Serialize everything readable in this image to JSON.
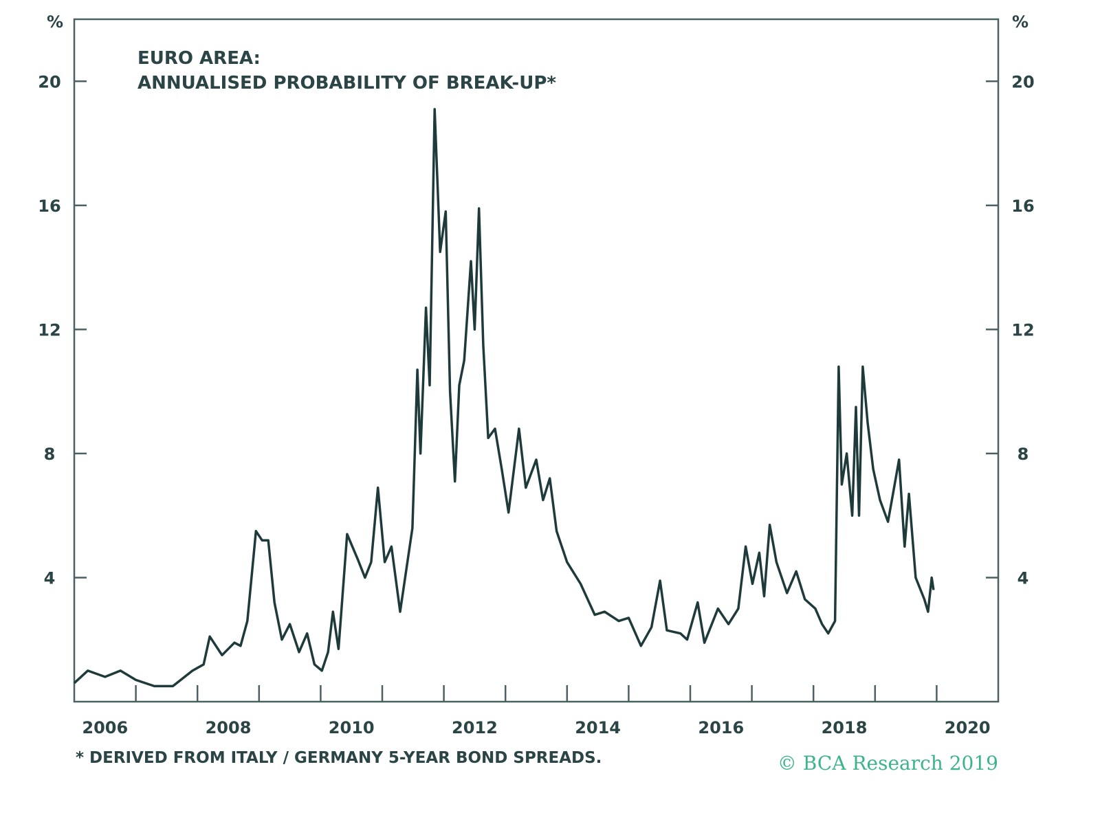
{
  "chart_data": {
    "type": "line",
    "title": "EURO AREA:",
    "subtitle": "ANNUALISED PROBABILITY OF BREAK-UP*",
    "ylabel_left": "%",
    "ylabel_right": "%",
    "ylim": [
      0,
      22
    ],
    "xlim": [
      2006,
      2021
    ],
    "yticks": [
      4,
      8,
      12,
      16,
      20
    ],
    "xtick_labels": [
      "2006",
      "2008",
      "2010",
      "2012",
      "2014",
      "2016",
      "2018",
      "2020"
    ],
    "grid": false,
    "footnote": "* DERIVED FROM ITALY / GERMANY 5-YEAR BOND SPREADS.",
    "source": "© BCA Research 2019",
    "line_color": "#1e3a3a",
    "series": [
      {
        "name": "Annualised probability of break-up",
        "x": [
          2006.0,
          2006.22,
          2006.5,
          2006.75,
          2007.0,
          2007.3,
          2007.6,
          2007.92,
          2008.1,
          2008.2,
          2008.4,
          2008.6,
          2008.7,
          2008.81,
          2008.95,
          2009.05,
          2009.15,
          2009.25,
          2009.37,
          2009.5,
          2009.65,
          2009.78,
          2009.9,
          2010.02,
          2010.12,
          2010.2,
          2010.29,
          2010.43,
          2010.6,
          2010.72,
          2010.82,
          2010.93,
          2011.04,
          2011.15,
          2011.29,
          2011.49,
          2011.57,
          2011.62,
          2011.71,
          2011.77,
          2011.85,
          2011.94,
          2012.03,
          2012.1,
          2012.18,
          2012.25,
          2012.33,
          2012.44,
          2012.5,
          2012.57,
          2012.64,
          2012.72,
          2012.83,
          2012.94,
          2013.05,
          2013.22,
          2013.33,
          2013.5,
          2013.61,
          2013.72,
          2013.83,
          2014.0,
          2014.22,
          2014.45,
          2014.61,
          2014.84,
          2015.0,
          2015.2,
          2015.37,
          2015.51,
          2015.62,
          2015.84,
          2015.95,
          2016.12,
          2016.23,
          2016.45,
          2016.62,
          2016.78,
          2016.9,
          2017.01,
          2017.12,
          2017.2,
          2017.29,
          2017.4,
          2017.57,
          2017.72,
          2017.86,
          2018.03,
          2018.14,
          2018.24,
          2018.35,
          2018.41,
          2018.46,
          2018.54,
          2018.63,
          2018.69,
          2018.74,
          2018.8,
          2018.88,
          2018.97,
          2019.08,
          2019.21,
          2019.3,
          2019.39,
          2019.48,
          2019.55,
          2019.66,
          2019.8,
          2019.86,
          2019.92,
          2019.95
        ],
        "y": [
          0.6,
          1.0,
          0.8,
          1.0,
          0.7,
          0.5,
          0.5,
          1.0,
          1.2,
          2.1,
          1.5,
          1.9,
          1.8,
          2.6,
          5.5,
          5.2,
          5.2,
          3.2,
          2.0,
          2.5,
          1.6,
          2.2,
          1.2,
          1.0,
          1.6,
          2.9,
          1.7,
          5.4,
          4.6,
          4.0,
          4.5,
          6.9,
          4.5,
          5.0,
          2.9,
          5.6,
          10.7,
          8.0,
          12.7,
          10.2,
          19.1,
          14.5,
          15.8,
          10.0,
          7.1,
          10.2,
          11.0,
          14.2,
          12.0,
          15.9,
          11.5,
          8.5,
          8.8,
          7.5,
          6.1,
          8.8,
          6.9,
          7.8,
          6.5,
          7.2,
          5.5,
          4.5,
          3.8,
          2.8,
          2.9,
          2.6,
          2.7,
          1.8,
          2.4,
          3.9,
          2.3,
          2.2,
          2.0,
          3.2,
          1.9,
          3.0,
          2.5,
          3.0,
          5.0,
          3.8,
          4.8,
          3.4,
          5.7,
          4.5,
          3.5,
          4.2,
          3.3,
          3.0,
          2.5,
          2.2,
          2.6,
          10.8,
          7.0,
          8.0,
          6.0,
          9.5,
          6.0,
          10.8,
          9.0,
          7.5,
          6.5,
          5.8,
          6.8,
          7.8,
          5.0,
          6.7,
          4.0,
          3.3,
          2.9,
          4.0,
          3.6
        ]
      }
    ]
  }
}
